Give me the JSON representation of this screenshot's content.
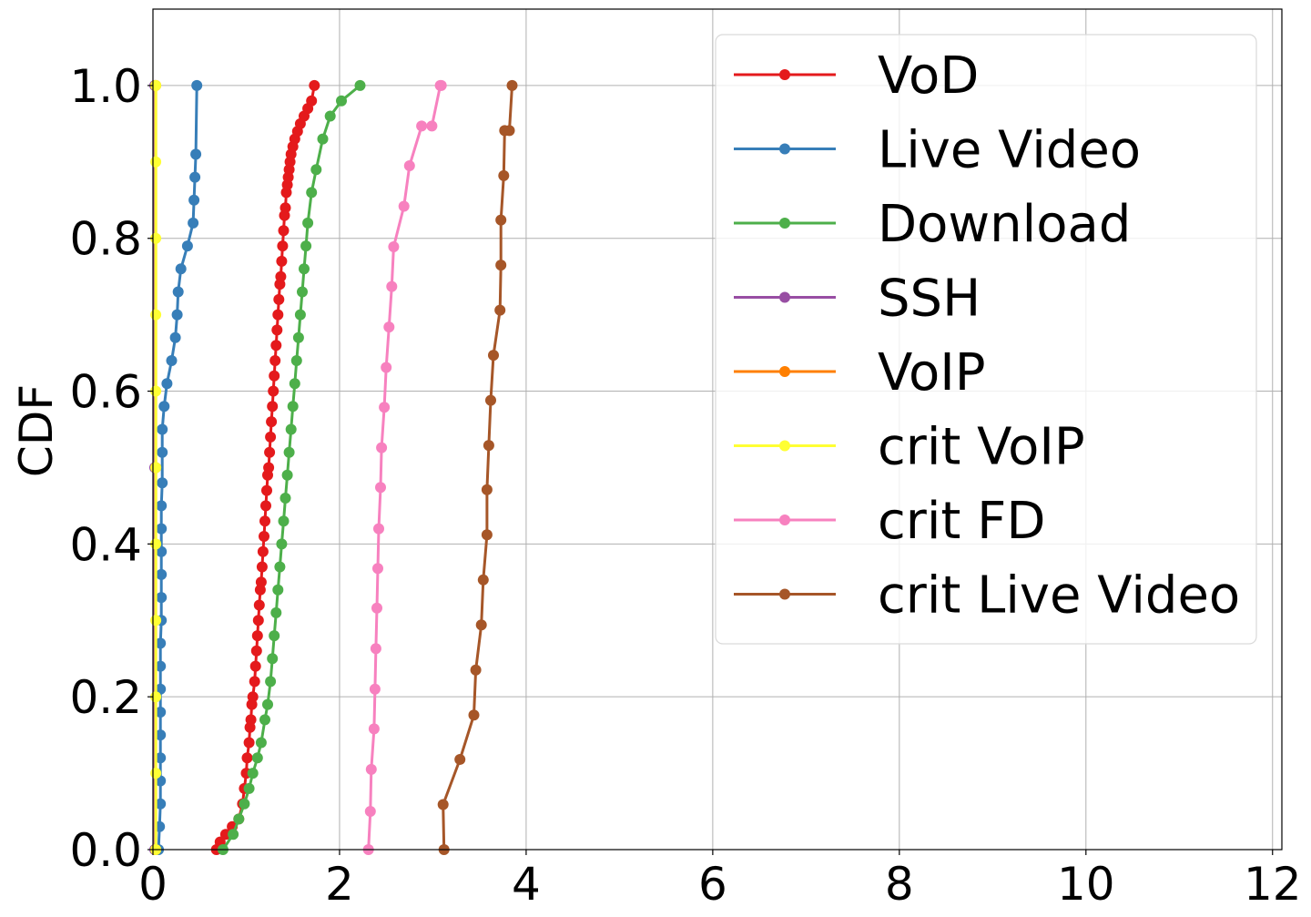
{
  "chart_data": {
    "type": "line",
    "ylabel": "CDF",
    "xlabel": "",
    "xlim": [
      0,
      12.1
    ],
    "ylim": [
      0,
      1.1
    ],
    "xticks": [
      "0",
      "2",
      "4",
      "6",
      "8",
      "10",
      "12"
    ],
    "yticks": [
      "0.0",
      "0.2",
      "0.4",
      "0.6",
      "0.8",
      "1.0"
    ],
    "grid": true,
    "legend_position": "top-right",
    "series": [
      {
        "name": "VoD",
        "color": "#e41a1c",
        "x": [
          0.68,
          0.72,
          0.78,
          0.85,
          0.92,
          0.96,
          0.98,
          1.0,
          1.01,
          1.03,
          1.04,
          1.05,
          1.06,
          1.07,
          1.09,
          1.1,
          1.11,
          1.12,
          1.13,
          1.14,
          1.15,
          1.16,
          1.17,
          1.18,
          1.19,
          1.2,
          1.21,
          1.22,
          1.23,
          1.24,
          1.25,
          1.26,
          1.27,
          1.28,
          1.29,
          1.3,
          1.31,
          1.32,
          1.33,
          1.34,
          1.35,
          1.36,
          1.37,
          1.38,
          1.39,
          1.4,
          1.41,
          1.42,
          1.43,
          1.44,
          1.45,
          1.46,
          1.47,
          1.48,
          1.5,
          1.52,
          1.55,
          1.58,
          1.62,
          1.66,
          1.7,
          1.73
        ],
        "y": [
          0.0,
          0.01,
          0.02,
          0.03,
          0.04,
          0.06,
          0.08,
          0.1,
          0.12,
          0.14,
          0.16,
          0.17,
          0.19,
          0.2,
          0.22,
          0.24,
          0.26,
          0.28,
          0.3,
          0.32,
          0.34,
          0.35,
          0.37,
          0.39,
          0.41,
          0.43,
          0.45,
          0.47,
          0.49,
          0.5,
          0.52,
          0.54,
          0.56,
          0.58,
          0.6,
          0.62,
          0.64,
          0.66,
          0.68,
          0.7,
          0.72,
          0.74,
          0.75,
          0.77,
          0.79,
          0.81,
          0.83,
          0.84,
          0.86,
          0.87,
          0.88,
          0.89,
          0.9,
          0.91,
          0.92,
          0.93,
          0.94,
          0.95,
          0.96,
          0.97,
          0.98,
          1.0
        ]
      },
      {
        "name": "Live Video",
        "color": "#377eb8",
        "x": [
          0.06,
          0.07,
          0.08,
          0.08,
          0.08,
          0.08,
          0.08,
          0.08,
          0.08,
          0.08,
          0.09,
          0.09,
          0.09,
          0.09,
          0.09,
          0.09,
          0.1,
          0.1,
          0.1,
          0.12,
          0.15,
          0.2,
          0.24,
          0.26,
          0.27,
          0.3,
          0.37,
          0.43,
          0.44,
          0.45,
          0.46,
          0.47
        ],
        "y": [
          0.0,
          0.03,
          0.06,
          0.09,
          0.12,
          0.15,
          0.18,
          0.21,
          0.24,
          0.27,
          0.3,
          0.33,
          0.36,
          0.39,
          0.42,
          0.45,
          0.48,
          0.52,
          0.55,
          0.58,
          0.61,
          0.64,
          0.67,
          0.7,
          0.73,
          0.76,
          0.79,
          0.82,
          0.85,
          0.88,
          0.91,
          1.0
        ]
      },
      {
        "name": "Download",
        "color": "#4daf4a",
        "x": [
          0.75,
          0.86,
          0.92,
          0.98,
          1.03,
          1.07,
          1.12,
          1.16,
          1.2,
          1.23,
          1.26,
          1.28,
          1.3,
          1.32,
          1.34,
          1.36,
          1.38,
          1.4,
          1.42,
          1.44,
          1.46,
          1.48,
          1.5,
          1.52,
          1.54,
          1.56,
          1.58,
          1.6,
          1.62,
          1.64,
          1.66,
          1.7,
          1.75,
          1.82,
          1.9,
          2.02,
          2.22
        ],
        "y": [
          0.0,
          0.02,
          0.04,
          0.06,
          0.08,
          0.1,
          0.12,
          0.14,
          0.17,
          0.19,
          0.22,
          0.25,
          0.28,
          0.31,
          0.34,
          0.37,
          0.4,
          0.43,
          0.46,
          0.49,
          0.52,
          0.55,
          0.58,
          0.61,
          0.64,
          0.67,
          0.7,
          0.73,
          0.76,
          0.79,
          0.82,
          0.86,
          0.89,
          0.93,
          0.96,
          0.98,
          1.0
        ]
      },
      {
        "name": "SSH",
        "color": "#984ea3",
        "x": [
          0.02,
          0.02,
          0.02
        ],
        "y": [
          0.0,
          0.5,
          1.0
        ]
      },
      {
        "name": "VoIP",
        "color": "#ff7f00",
        "x": [
          0.03,
          0.03,
          0.03
        ],
        "y": [
          0.0,
          0.5,
          1.0
        ]
      },
      {
        "name": "crit VoIP",
        "color": "#ffff33",
        "x": [
          0.03,
          0.03,
          0.03,
          0.03,
          0.03,
          0.03,
          0.03,
          0.03,
          0.03,
          0.03,
          0.03
        ],
        "y": [
          0.0,
          0.1,
          0.2,
          0.3,
          0.4,
          0.5,
          0.6,
          0.7,
          0.8,
          0.9,
          1.0
        ]
      },
      {
        "name": "crit FD",
        "color": "#f781bf",
        "x": [
          2.31,
          2.33,
          2.34,
          2.37,
          2.38,
          2.39,
          2.4,
          2.41,
          2.42,
          2.44,
          2.45,
          2.48,
          2.5,
          2.53,
          2.56,
          2.58,
          2.69,
          2.75,
          2.88,
          2.99,
          3.08,
          3.09
        ],
        "y": [
          0.0,
          0.05,
          0.105,
          0.158,
          0.21,
          0.263,
          0.316,
          0.368,
          0.42,
          0.474,
          0.526,
          0.579,
          0.631,
          0.684,
          0.737,
          0.789,
          0.842,
          0.895,
          0.947,
          0.947,
          1.0,
          1.0
        ]
      },
      {
        "name": "crit Live Video",
        "color": "#a65628",
        "x": [
          3.12,
          3.11,
          3.29,
          3.44,
          3.46,
          3.52,
          3.54,
          3.58,
          3.58,
          3.6,
          3.62,
          3.65,
          3.72,
          3.73,
          3.73,
          3.76,
          3.77,
          3.82,
          3.85
        ],
        "y": [
          0.0,
          0.059,
          0.118,
          0.176,
          0.235,
          0.294,
          0.353,
          0.412,
          0.471,
          0.529,
          0.588,
          0.647,
          0.706,
          0.765,
          0.824,
          0.882,
          0.941,
          0.941,
          1.0
        ]
      }
    ]
  }
}
